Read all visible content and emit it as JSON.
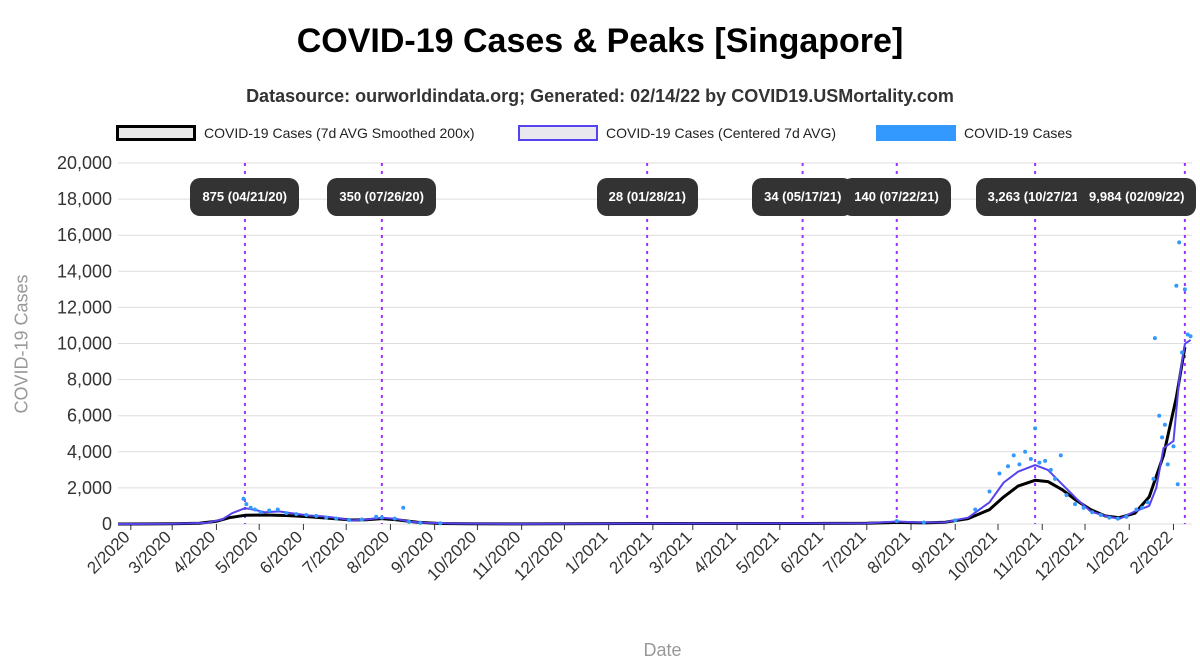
{
  "chart_data": {
    "type": "line",
    "title": "COVID-19 Cases & Peaks [Singapore]",
    "subtitle": "Datasource: ourworldindata.org; Generated: 02/14/22 by COVID19.USMortality.com",
    "xlabel": "Date",
    "ylabel": "COVID-19 Cases",
    "ylim": [
      0,
      20000
    ],
    "yticks": [
      0,
      2000,
      4000,
      6000,
      8000,
      10000,
      12000,
      14000,
      16000,
      18000,
      20000
    ],
    "ytick_labels": [
      "0",
      "2,000",
      "4,000",
      "6,000",
      "8,000",
      "10,000",
      "12,000",
      "14,000",
      "16,000",
      "18,000",
      "20,000"
    ],
    "xlim": [
      "2020-01-23",
      "2022-02-14"
    ],
    "xticks": [
      {
        "date": "2020-02-01",
        "label": "2/2020"
      },
      {
        "date": "2020-03-01",
        "label": "3/2020"
      },
      {
        "date": "2020-04-01",
        "label": "4/2020"
      },
      {
        "date": "2020-05-01",
        "label": "5/2020"
      },
      {
        "date": "2020-06-01",
        "label": "6/2020"
      },
      {
        "date": "2020-07-01",
        "label": "7/2020"
      },
      {
        "date": "2020-08-01",
        "label": "8/2020"
      },
      {
        "date": "2020-09-01",
        "label": "9/2020"
      },
      {
        "date": "2020-10-01",
        "label": "10/2020"
      },
      {
        "date": "2020-11-01",
        "label": "11/2020"
      },
      {
        "date": "2020-12-01",
        "label": "12/2020"
      },
      {
        "date": "2021-01-01",
        "label": "1/2021"
      },
      {
        "date": "2021-02-01",
        "label": "2/2021"
      },
      {
        "date": "2021-03-01",
        "label": "3/2021"
      },
      {
        "date": "2021-04-01",
        "label": "4/2021"
      },
      {
        "date": "2021-05-01",
        "label": "5/2021"
      },
      {
        "date": "2021-06-01",
        "label": "6/2021"
      },
      {
        "date": "2021-07-01",
        "label": "7/2021"
      },
      {
        "date": "2021-08-01",
        "label": "8/2021"
      },
      {
        "date": "2021-09-01",
        "label": "9/2021"
      },
      {
        "date": "2021-10-01",
        "label": "10/2021"
      },
      {
        "date": "2021-11-01",
        "label": "11/2021"
      },
      {
        "date": "2021-12-01",
        "label": "12/2021"
      },
      {
        "date": "2022-01-01",
        "label": "1/2022"
      },
      {
        "date": "2022-02-01",
        "label": "2/2022"
      }
    ],
    "grid": true,
    "legend_position": "top",
    "series": [
      {
        "name": "COVID-19 Cases (7d AVG Smoothed 200x)",
        "kind": "line",
        "color": "#000000",
        "points": [
          [
            "2020-01-23",
            0
          ],
          [
            "2020-03-01",
            10
          ],
          [
            "2020-03-20",
            40
          ],
          [
            "2020-04-01",
            150
          ],
          [
            "2020-04-10",
            350
          ],
          [
            "2020-04-21",
            480
          ],
          [
            "2020-05-05",
            500
          ],
          [
            "2020-05-20",
            470
          ],
          [
            "2020-06-05",
            400
          ],
          [
            "2020-06-20",
            310
          ],
          [
            "2020-07-05",
            220
          ],
          [
            "2020-07-15",
            230
          ],
          [
            "2020-07-26",
            300
          ],
          [
            "2020-08-05",
            230
          ],
          [
            "2020-08-20",
            100
          ],
          [
            "2020-09-05",
            30
          ],
          [
            "2020-09-25",
            15
          ],
          [
            "2020-11-01",
            8
          ],
          [
            "2021-01-28",
            25
          ],
          [
            "2021-05-17",
            30
          ],
          [
            "2021-07-01",
            40
          ],
          [
            "2021-07-22",
            90
          ],
          [
            "2021-08-10",
            60
          ],
          [
            "2021-08-25",
            100
          ],
          [
            "2021-09-10",
            300
          ],
          [
            "2021-09-25",
            800
          ],
          [
            "2021-10-05",
            1500
          ],
          [
            "2021-10-15",
            2100
          ],
          [
            "2021-10-27",
            2420
          ],
          [
            "2021-11-05",
            2350
          ],
          [
            "2021-11-15",
            1900
          ],
          [
            "2021-11-25",
            1300
          ],
          [
            "2021-12-05",
            800
          ],
          [
            "2021-12-15",
            450
          ],
          [
            "2021-12-25",
            350
          ],
          [
            "2022-01-05",
            600
          ],
          [
            "2022-01-15",
            1500
          ],
          [
            "2022-01-25",
            3800
          ],
          [
            "2022-02-03",
            7000
          ],
          [
            "2022-02-09",
            9800
          ]
        ]
      },
      {
        "name": "COVID-19 Cases (Centered 7d AVG)",
        "kind": "line",
        "color": "#5544ee",
        "points": [
          [
            "2020-01-23",
            0
          ],
          [
            "2020-03-01",
            10
          ],
          [
            "2020-03-25",
            60
          ],
          [
            "2020-04-05",
            250
          ],
          [
            "2020-04-12",
            600
          ],
          [
            "2020-04-21",
            875
          ],
          [
            "2020-04-28",
            780
          ],
          [
            "2020-05-05",
            650
          ],
          [
            "2020-05-15",
            700
          ],
          [
            "2020-05-25",
            580
          ],
          [
            "2020-06-05",
            470
          ],
          [
            "2020-06-15",
            420
          ],
          [
            "2020-06-25",
            330
          ],
          [
            "2020-07-05",
            200
          ],
          [
            "2020-07-15",
            250
          ],
          [
            "2020-07-26",
            350
          ],
          [
            "2020-08-05",
            280
          ],
          [
            "2020-08-15",
            120
          ],
          [
            "2020-08-25",
            70
          ],
          [
            "2020-09-15",
            25
          ],
          [
            "2020-11-01",
            8
          ],
          [
            "2021-01-28",
            28
          ],
          [
            "2021-05-17",
            34
          ],
          [
            "2021-07-01",
            40
          ],
          [
            "2021-07-22",
            140
          ],
          [
            "2021-08-05",
            90
          ],
          [
            "2021-08-25",
            100
          ],
          [
            "2021-09-10",
            350
          ],
          [
            "2021-09-25",
            1200
          ],
          [
            "2021-10-05",
            2300
          ],
          [
            "2021-10-15",
            2900
          ],
          [
            "2021-10-27",
            3263
          ],
          [
            "2021-11-05",
            3000
          ],
          [
            "2021-11-15",
            2200
          ],
          [
            "2021-11-25",
            1400
          ],
          [
            "2021-12-05",
            700
          ],
          [
            "2021-12-15",
            450
          ],
          [
            "2021-12-25",
            280
          ],
          [
            "2022-01-05",
            700
          ],
          [
            "2022-01-15",
            1000
          ],
          [
            "2022-01-20",
            2000
          ],
          [
            "2022-01-25",
            4200
          ],
          [
            "2022-02-01",
            4600
          ],
          [
            "2022-02-05",
            8000
          ],
          [
            "2022-02-09",
            9984
          ],
          [
            "2022-02-13",
            10200
          ]
        ]
      },
      {
        "name": "COVID-19 Cases",
        "kind": "scatter",
        "color": "#3399ff",
        "points": [
          [
            "2020-04-20",
            1400
          ],
          [
            "2020-04-22",
            1100
          ],
          [
            "2020-04-25",
            900
          ],
          [
            "2020-04-28",
            800
          ],
          [
            "2020-05-02",
            650
          ],
          [
            "2020-05-08",
            750
          ],
          [
            "2020-05-14",
            800
          ],
          [
            "2020-05-20",
            600
          ],
          [
            "2020-05-27",
            550
          ],
          [
            "2020-06-03",
            500
          ],
          [
            "2020-06-10",
            450
          ],
          [
            "2020-06-17",
            350
          ],
          [
            "2020-06-24",
            300
          ],
          [
            "2020-07-03",
            220
          ],
          [
            "2020-07-12",
            250
          ],
          [
            "2020-07-22",
            400
          ],
          [
            "2020-07-26",
            350
          ],
          [
            "2020-08-04",
            300
          ],
          [
            "2020-08-10",
            900
          ],
          [
            "2020-08-14",
            120
          ],
          [
            "2020-08-22",
            60
          ],
          [
            "2020-09-05",
            40
          ],
          [
            "2021-07-22",
            160
          ],
          [
            "2021-08-10",
            80
          ],
          [
            "2021-09-01",
            200
          ],
          [
            "2021-09-15",
            800
          ],
          [
            "2021-09-25",
            1800
          ],
          [
            "2021-10-02",
            2800
          ],
          [
            "2021-10-08",
            3200
          ],
          [
            "2021-10-12",
            3800
          ],
          [
            "2021-10-16",
            3300
          ],
          [
            "2021-10-20",
            4000
          ],
          [
            "2021-10-24",
            3600
          ],
          [
            "2021-10-27",
            5300
          ],
          [
            "2021-10-30",
            3400
          ],
          [
            "2021-11-03",
            3500
          ],
          [
            "2021-11-07",
            3000
          ],
          [
            "2021-11-10",
            2500
          ],
          [
            "2021-11-14",
            3800
          ],
          [
            "2021-11-18",
            1600
          ],
          [
            "2021-11-24",
            1100
          ],
          [
            "2021-11-30",
            900
          ],
          [
            "2021-12-06",
            650
          ],
          [
            "2021-12-12",
            500
          ],
          [
            "2021-12-18",
            350
          ],
          [
            "2021-12-24",
            300
          ],
          [
            "2021-12-30",
            400
          ],
          [
            "2022-01-06",
            800
          ],
          [
            "2022-01-10",
            900
          ],
          [
            "2022-01-14",
            1200
          ],
          [
            "2022-01-18",
            2500
          ],
          [
            "2022-01-19",
            10300
          ],
          [
            "2022-01-22",
            6000
          ],
          [
            "2022-01-24",
            4800
          ],
          [
            "2022-01-26",
            5500
          ],
          [
            "2022-01-28",
            3300
          ],
          [
            "2022-02-01",
            4300
          ],
          [
            "2022-02-03",
            13200
          ],
          [
            "2022-02-04",
            2200
          ],
          [
            "2022-02-05",
            15600
          ],
          [
            "2022-02-07",
            9500
          ],
          [
            "2022-02-09",
            13000
          ],
          [
            "2022-02-11",
            10500
          ],
          [
            "2022-02-13",
            10400
          ]
        ]
      }
    ],
    "peaks": [
      {
        "date": "2020-04-21",
        "label": "875 (04/21/20)"
      },
      {
        "date": "2020-07-26",
        "label": "350 (07/26/20)"
      },
      {
        "date": "2021-01-28",
        "label": "28 (01/28/21)"
      },
      {
        "date": "2021-05-17",
        "label": "34 (05/17/21)"
      },
      {
        "date": "2021-07-22",
        "label": "140 (07/22/21)"
      },
      {
        "date": "2021-10-27",
        "label": "3,263 (10/27/21)"
      },
      {
        "date": "2022-02-09",
        "label": "9,984 (02/09/22)"
      }
    ]
  },
  "legend": {
    "items": [
      {
        "label": "COVID-19 Cases (7d AVG Smoothed 200x)",
        "fill": "#e8e8e8",
        "border": "#000000"
      },
      {
        "label": "COVID-19 Cases (Centered 7d AVG)",
        "fill": "#e8e8ee",
        "border": "#5544ee"
      },
      {
        "label": "COVID-19 Cases",
        "fill": "#3399ff",
        "border": "#3399ff"
      }
    ]
  },
  "colors": {
    "grid": "#dddddd",
    "peak_line": "#9933ff",
    "peak_label_bg": "#333333",
    "peak_label_text": "#ffffff"
  }
}
